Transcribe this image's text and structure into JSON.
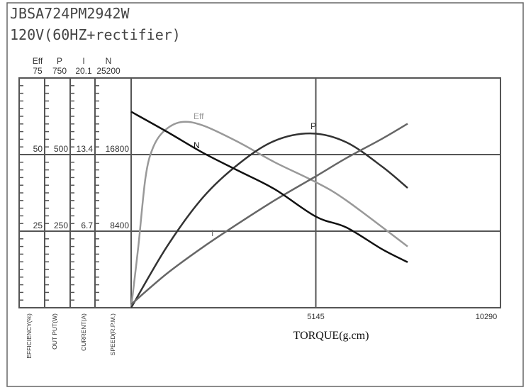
{
  "title": "JBSA724PM2942W",
  "subtitle": "120V(60HZ+rectifier)",
  "chart_data": {
    "type": "line",
    "xlabel": "TORQUE(g.cm)",
    "xlim": [
      0,
      10290
    ],
    "x_ticks": [
      "5145",
      "10290"
    ],
    "x_tick_values": [
      5145,
      10290
    ],
    "grid": true,
    "y_axes": [
      {
        "key": "eff",
        "header": "Eff",
        "max_label": "75",
        "ticks": [
          "50",
          "25"
        ],
        "label": "EFFICIENCY(%)",
        "max": 75
      },
      {
        "key": "p",
        "header": "P",
        "max_label": "750",
        "ticks": [
          "500",
          "250"
        ],
        "label": "OUT PUT(W)",
        "max": 750
      },
      {
        "key": "i",
        "header": "I",
        "max_label": "20.1",
        "ticks": [
          "13.4",
          "6.7"
        ],
        "label": "CURRENT(A)",
        "max": 20.1
      },
      {
        "key": "n",
        "header": "N",
        "max_label": "25200",
        "ticks": [
          "16800",
          "8400"
        ],
        "label": "SPEED(R.P.M.)",
        "max": 25200
      }
    ],
    "series": [
      {
        "name": "Eff",
        "axis": "eff",
        "color": "#999999",
        "x": [
          0,
          200,
          400,
          600,
          900,
          1383,
          2000,
          3000,
          4000,
          5145,
          6000,
          7703
        ],
        "y": [
          0,
          20,
          42.5,
          52,
          57.5,
          60.6,
          59.5,
          54,
          47.5,
          41,
          35,
          20
        ]
      },
      {
        "name": "P",
        "axis": "p",
        "color": "#333333",
        "x": [
          0,
          1000,
          2000,
          3000,
          4000,
          5037,
          6000,
          7000,
          7703
        ],
        "y": [
          0,
          200,
          360,
          470,
          545,
          569,
          540,
          460,
          391
        ]
      },
      {
        "name": "I",
        "axis": "i",
        "color": "#666666",
        "x": [
          0,
          1000,
          2000,
          3000,
          4000,
          5145,
          6000,
          7000,
          7703
        ],
        "y": [
          0.3,
          3.0,
          5.3,
          7.4,
          9.4,
          11.5,
          13.1,
          14.8,
          16.1
        ]
      },
      {
        "name": "N",
        "axis": "n",
        "color": "#111111",
        "x": [
          0,
          1000,
          2000,
          3000,
          4000,
          5145,
          6000,
          7000,
          7703
        ],
        "y": [
          21500,
          19300,
          17000,
          15000,
          13000,
          10000,
          8800,
          6400,
          5000
        ]
      }
    ]
  }
}
